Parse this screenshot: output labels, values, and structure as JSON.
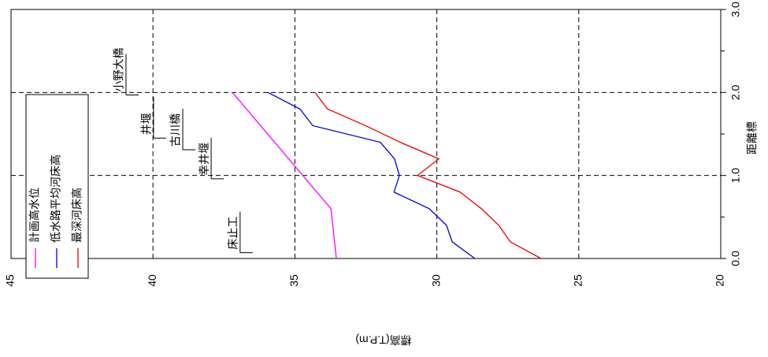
{
  "chart_data": {
    "type": "line",
    "orientation": "rotated",
    "x_label": "距離標",
    "y_label": "標高(T.P.m)",
    "x": [
      2.0,
      1.8,
      1.6,
      1.4,
      1.2,
      1.0,
      0.8,
      0.6,
      0.4,
      0.2,
      0.0
    ],
    "xlim": [
      0,
      3
    ],
    "xticks": [
      {
        "value": 0,
        "label": "0.0"
      },
      {
        "value": 1,
        "label": "1.0"
      },
      {
        "value": 2,
        "label": "2.0"
      },
      {
        "value": 3,
        "label": "3.0"
      }
    ],
    "xminorticks": [
      0.5,
      1.5,
      2.5
    ],
    "ylim": [
      45,
      20
    ],
    "yticks": [
      45,
      40,
      35,
      30,
      25,
      20
    ],
    "grid": true,
    "legend": "bottom-left",
    "series": [
      {
        "name": "計画高水位",
        "color": "#ff00ff",
        "x": [
          2.0,
          0.6,
          0.0
        ],
        "values": [
          37.2,
          33.73,
          33.54
        ]
      },
      {
        "name": "低水路平均河床高",
        "color": "#0000dd",
        "values": [
          35.95,
          34.82,
          34.37,
          31.99,
          31.49,
          31.32,
          31.51,
          30.27,
          29.66,
          29.46,
          28.66
        ]
      },
      {
        "name": "最深河床高",
        "color": "#ee0000",
        "values": [
          34.29,
          33.85,
          32.51,
          31.29,
          29.93,
          30.68,
          29.18,
          28.43,
          27.82,
          27.41,
          26.33
        ]
      }
    ],
    "annotations": [
      {
        "label": "小野大橋",
        "x": 1.97,
        "y": 40.95
      },
      {
        "label": "井堰",
        "x": 1.45,
        "y": 39.98
      },
      {
        "label": "古川橋",
        "x": 1.31,
        "y": 38.95
      },
      {
        "label": "幸井堰",
        "x": 0.96,
        "y": 37.95
      },
      {
        "label": "床止工",
        "x": 0.07,
        "y": 36.93
      }
    ]
  }
}
